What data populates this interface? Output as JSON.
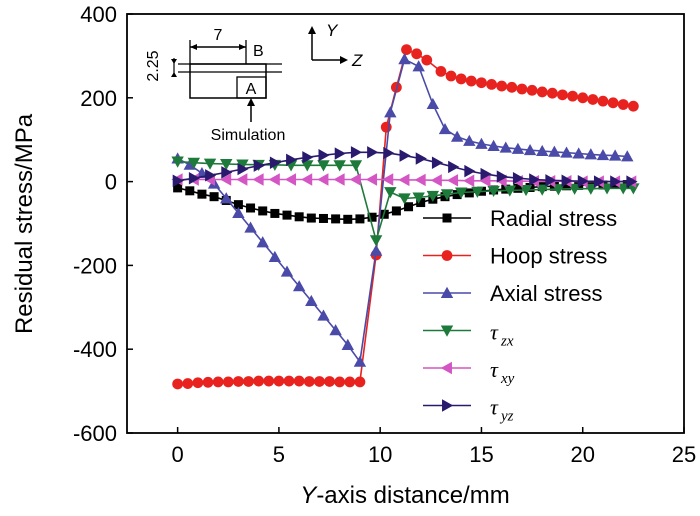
{
  "chart_data": {
    "type": "line",
    "title": "",
    "xlabel_italic": "Y",
    "xlabel_rest": "-axis distance/mm",
    "ylabel": "Residual stress/MPa",
    "xlim": [
      -2.5,
      25
    ],
    "ylim": [
      -600,
      400
    ],
    "xticks": [
      0,
      5,
      10,
      15,
      20,
      25
    ],
    "yticks": [
      400,
      200,
      0,
      -200,
      -400,
      -600
    ],
    "legend_position": "right",
    "series": [
      {
        "name": "Radial stress",
        "marker": "square",
        "color": "#000000",
        "x": [
          0,
          0.6,
          1.2,
          1.8,
          2.4,
          3.0,
          3.6,
          4.2,
          4.8,
          5.4,
          6.0,
          6.6,
          7.2,
          7.8,
          8.4,
          9.0,
          9.6,
          10.2,
          10.8,
          11.4,
          12.0,
          12.6,
          13.2,
          13.8,
          14.4,
          15.0,
          15.6,
          16.2,
          16.8,
          17.4,
          18.0,
          18.6,
          19.2,
          19.8,
          20.4,
          21.0,
          21.6,
          22.2
        ],
        "y": [
          -15,
          -22,
          -30,
          -36,
          -45,
          -55,
          -63,
          -70,
          -76,
          -80,
          -84,
          -87,
          -88,
          -89,
          -90,
          -89,
          -85,
          -78,
          -70,
          -60,
          -50,
          -42,
          -36,
          -31,
          -27,
          -23,
          -20,
          -18,
          -16,
          -14,
          -12,
          -11,
          -10,
          -9,
          -8,
          -8,
          -7,
          -7
        ]
      },
      {
        "name": "Hoop  stress",
        "marker": "circle",
        "color": "#e8231f",
        "x": [
          0,
          0.5,
          1.0,
          1.5,
          2.0,
          2.5,
          3.0,
          3.5,
          4.0,
          4.5,
          5.0,
          5.5,
          6.0,
          6.5,
          7.0,
          7.5,
          8.0,
          8.5,
          9.0,
          9.8,
          10.3,
          10.8,
          11.3,
          11.8,
          12.3,
          13.0,
          13.5,
          14.0,
          14.5,
          15.0,
          15.5,
          16.0,
          16.5,
          17.0,
          17.5,
          18.0,
          18.5,
          19.0,
          19.5,
          20.0,
          20.5,
          21.0,
          21.5,
          22.0,
          22.5
        ],
        "y": [
          -483,
          -482,
          -480,
          -479,
          -478,
          -478,
          -477,
          -477,
          -476,
          -476,
          -476,
          -476,
          -476,
          -477,
          -477,
          -477,
          -478,
          -478,
          -478,
          -175,
          130,
          225,
          315,
          305,
          290,
          263,
          252,
          245,
          240,
          236,
          232,
          228,
          225,
          221,
          218,
          214,
          211,
          207,
          204,
          200,
          196,
          192,
          188,
          184,
          180
        ]
      },
      {
        "name": "Axial stress",
        "marker": "triangle-up",
        "color": "#4a4aa8",
        "x": [
          0,
          0.6,
          1.2,
          1.8,
          2.4,
          3.0,
          3.6,
          4.2,
          4.8,
          5.4,
          6.0,
          6.6,
          7.2,
          7.8,
          8.4,
          9.0,
          9.8,
          10.5,
          11.2,
          11.9,
          12.6,
          13.2,
          13.8,
          14.4,
          15.0,
          15.6,
          16.2,
          16.8,
          17.4,
          18.0,
          18.6,
          19.2,
          19.8,
          20.4,
          21.0,
          21.6,
          22.2
        ],
        "y": [
          55,
          40,
          20,
          -5,
          -40,
          -75,
          -110,
          -145,
          -180,
          -215,
          -250,
          -285,
          -320,
          -355,
          -390,
          -430,
          -165,
          165,
          292,
          275,
          185,
          125,
          107,
          97,
          90,
          85,
          81,
          78,
          75,
          73,
          71,
          69,
          67,
          65,
          63,
          62,
          60
        ]
      },
      {
        "name": "τzx",
        "tau": "τ",
        "sub": "zx",
        "marker": "triangle-down",
        "color": "#1e7a3a",
        "x": [
          0,
          0.8,
          1.6,
          2.4,
          3.2,
          4.0,
          4.8,
          5.6,
          6.4,
          7.2,
          8.0,
          8.8,
          9.8,
          10.5,
          11.2,
          11.9,
          12.6,
          13.3,
          14.0,
          14.8,
          15.6,
          16.4,
          17.2,
          18.0,
          18.8,
          19.6,
          20.4,
          21.2,
          22.0,
          22.5
        ],
        "y": [
          48,
          45,
          43,
          42,
          41,
          40,
          40,
          39,
          39,
          39,
          39,
          39,
          -140,
          -25,
          -40,
          -38,
          -34,
          -30,
          -26,
          -24,
          -22,
          -21,
          -20,
          -19,
          -18,
          -17,
          -17,
          -16,
          -16,
          -16
        ]
      },
      {
        "name": "τxy",
        "tau": "τ",
        "sub": "xy",
        "marker": "triangle-left",
        "color": "#d455c4",
        "x": [
          0,
          0.8,
          1.6,
          2.4,
          3.2,
          4.0,
          4.8,
          5.6,
          6.4,
          7.2,
          8.0,
          8.8,
          9.6,
          10.4,
          11.2,
          12.0,
          12.8,
          13.6,
          14.4,
          15.2,
          16.0,
          16.8,
          17.6,
          18.4,
          19.2,
          20.0,
          20.8,
          21.6,
          22.4
        ],
        "y": [
          5,
          5,
          5,
          5,
          5,
          5,
          5,
          5,
          5,
          5,
          5,
          5,
          5,
          5,
          4,
          4,
          3,
          3,
          2,
          2,
          2,
          1,
          1,
          1,
          1,
          0,
          0,
          0,
          0
        ]
      },
      {
        "name": "τyz",
        "tau": "τ",
        "sub": "yz",
        "marker": "triangle-right",
        "color": "#2a1a6e",
        "x": [
          0,
          0.8,
          1.6,
          2.4,
          3.2,
          4.0,
          4.8,
          5.6,
          6.4,
          7.2,
          8.0,
          8.8,
          9.6,
          10.4,
          11.2,
          12.0,
          12.8,
          13.6,
          14.4,
          15.2,
          16.0,
          16.8,
          17.6,
          18.4,
          19.2,
          20.0,
          20.8,
          21.6,
          22.4
        ],
        "y": [
          2,
          8,
          15,
          22,
          30,
          38,
          45,
          52,
          58,
          63,
          67,
          70,
          70,
          68,
          62,
          55,
          45,
          35,
          25,
          18,
          12,
          8,
          5,
          3,
          2,
          1,
          0,
          0,
          0
        ]
      }
    ],
    "inset": {
      "dim_width": "7",
      "dim_height": "2.25",
      "label_b": "B",
      "label_a": "A",
      "caption": "Simulation",
      "axis_y": "Y",
      "axis_z": "Z"
    }
  }
}
